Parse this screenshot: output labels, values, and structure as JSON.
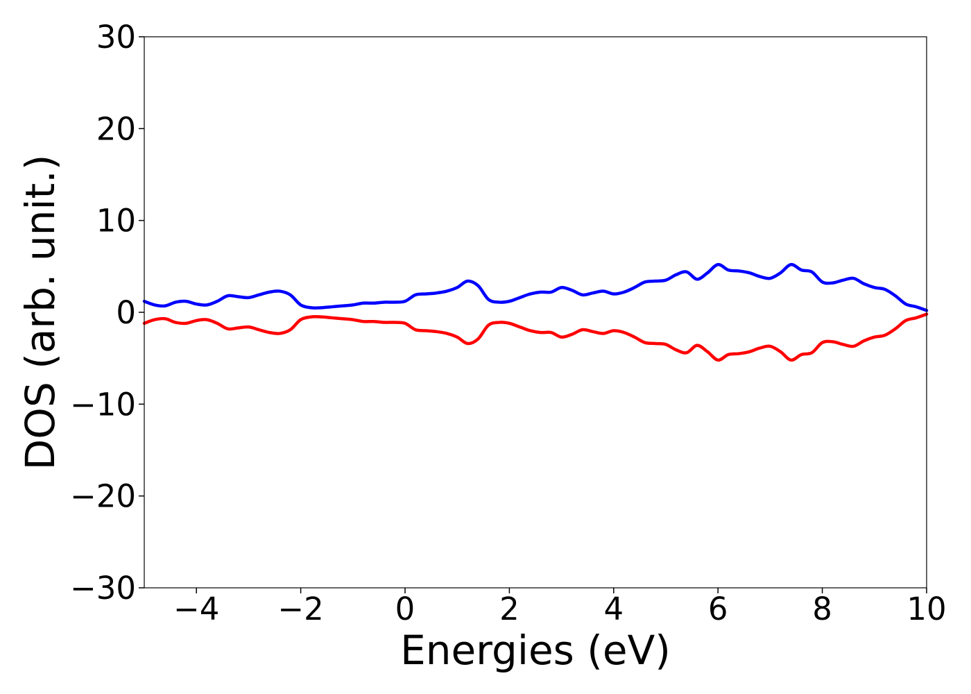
{
  "chart_data": {
    "type": "line",
    "title": "",
    "xlabel": "Energies (eV)",
    "ylabel": "DOS (arb. unit.)",
    "xlim": [
      -5,
      10
    ],
    "ylim": [
      -30,
      30
    ],
    "xticks": [
      -4,
      -2,
      0,
      2,
      4,
      6,
      8,
      10
    ],
    "xtick_labels": [
      "−4",
      "−2",
      "0",
      "2",
      "4",
      "6",
      "8",
      "10"
    ],
    "yticks": [
      30,
      20,
      10,
      0,
      -10,
      -20,
      -30
    ],
    "ytick_labels": [
      "30",
      "20",
      "10",
      "0",
      "−10",
      "−20",
      "−30"
    ],
    "grid": false,
    "legend": "none",
    "x": [
      -5.0,
      -4.8,
      -4.6,
      -4.4,
      -4.2,
      -4.0,
      -3.8,
      -3.6,
      -3.4,
      -3.2,
      -3.0,
      -2.8,
      -2.6,
      -2.4,
      -2.2,
      -2.0,
      -1.8,
      -1.6,
      -1.4,
      -1.2,
      -1.0,
      -0.8,
      -0.6,
      -0.4,
      -0.2,
      0.0,
      0.2,
      0.4,
      0.6,
      0.8,
      1.0,
      1.2,
      1.4,
      1.6,
      1.8,
      2.0,
      2.2,
      2.4,
      2.6,
      2.8,
      3.0,
      3.2,
      3.4,
      3.6,
      3.8,
      4.0,
      4.2,
      4.4,
      4.6,
      4.8,
      5.0,
      5.2,
      5.4,
      5.6,
      5.8,
      6.0,
      6.2,
      6.4,
      6.6,
      6.8,
      7.0,
      7.2,
      7.4,
      7.6,
      7.8,
      8.0,
      8.2,
      8.4,
      8.6,
      8.8,
      9.0,
      9.2,
      9.4,
      9.6,
      9.8,
      10.0
    ],
    "series": [
      {
        "color": "#0000ff",
        "values": [
          1.2,
          0.8,
          0.7,
          1.1,
          1.2,
          0.9,
          0.8,
          1.2,
          1.8,
          1.7,
          1.6,
          1.9,
          2.2,
          2.3,
          1.9,
          0.8,
          0.5,
          0.5,
          0.6,
          0.7,
          0.8,
          1.0,
          1.0,
          1.1,
          1.1,
          1.2,
          1.9,
          2.0,
          2.1,
          2.3,
          2.7,
          3.4,
          2.9,
          1.4,
          1.1,
          1.2,
          1.6,
          2.0,
          2.2,
          2.2,
          2.7,
          2.4,
          1.9,
          2.1,
          2.3,
          2.0,
          2.2,
          2.7,
          3.3,
          3.4,
          3.5,
          4.1,
          4.4,
          3.6,
          4.3,
          5.2,
          4.6,
          4.5,
          4.3,
          3.9,
          3.7,
          4.3,
          5.2,
          4.6,
          4.4,
          3.3,
          3.2,
          3.5,
          3.7,
          3.1,
          2.7,
          2.5,
          1.8,
          0.9,
          0.6,
          0.2
        ]
      },
      {
        "color": "#ff0000",
        "values": [
          -1.2,
          -0.8,
          -0.7,
          -1.1,
          -1.2,
          -0.9,
          -0.8,
          -1.2,
          -1.8,
          -1.7,
          -1.6,
          -1.9,
          -2.2,
          -2.3,
          -1.9,
          -0.8,
          -0.5,
          -0.5,
          -0.6,
          -0.7,
          -0.8,
          -1.0,
          -1.0,
          -1.1,
          -1.1,
          -1.2,
          -1.9,
          -2.0,
          -2.1,
          -2.3,
          -2.7,
          -3.4,
          -2.9,
          -1.4,
          -1.1,
          -1.2,
          -1.6,
          -2.0,
          -2.2,
          -2.2,
          -2.7,
          -2.4,
          -1.9,
          -2.1,
          -2.3,
          -2.0,
          -2.2,
          -2.7,
          -3.3,
          -3.4,
          -3.5,
          -4.1,
          -4.4,
          -3.6,
          -4.3,
          -5.2,
          -4.6,
          -4.5,
          -4.3,
          -3.9,
          -3.7,
          -4.3,
          -5.2,
          -4.6,
          -4.4,
          -3.3,
          -3.2,
          -3.5,
          -3.7,
          -3.1,
          -2.7,
          -2.5,
          -1.8,
          -0.9,
          -0.6,
          -0.2
        ]
      }
    ]
  }
}
